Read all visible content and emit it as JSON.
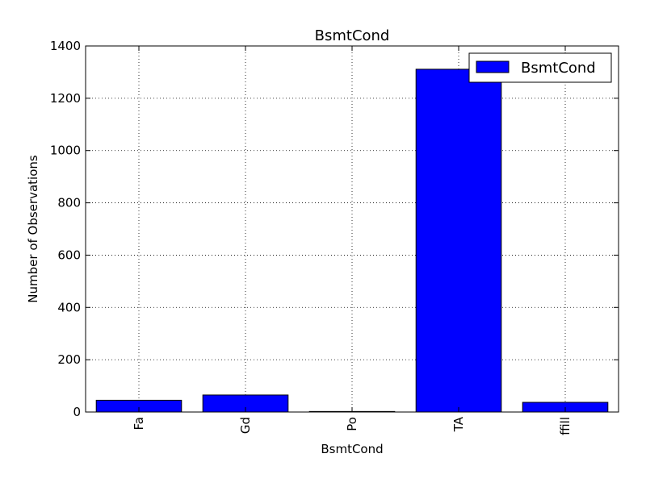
{
  "chart_data": {
    "type": "bar",
    "title": "BsmtCond",
    "xlabel": "BsmtCond",
    "ylabel": "Number of Observations",
    "categories": [
      "Fa",
      "Gd",
      "Po",
      "TA",
      "ffill"
    ],
    "series": [
      {
        "name": "BsmtCond",
        "values": [
          45,
          65,
          2,
          1311,
          37
        ],
        "color": "#0000ff"
      }
    ],
    "ylim": [
      0,
      1400
    ],
    "yticks": [
      0,
      200,
      400,
      600,
      800,
      1000,
      1200,
      1400
    ],
    "grid": true,
    "legend_position": "top-right"
  }
}
